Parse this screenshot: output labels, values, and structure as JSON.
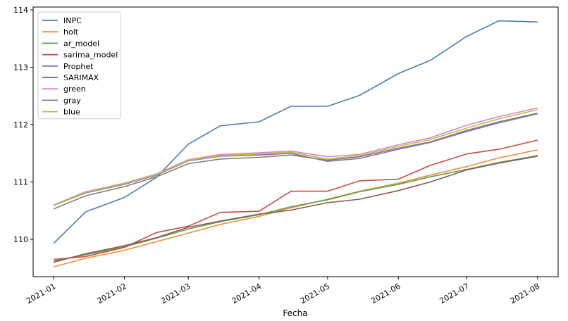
{
  "chart_data": {
    "type": "line",
    "title": "",
    "xlabel": "Fecha",
    "ylabel": "",
    "x": [
      "2021-01-01",
      "2021-01-15",
      "2021-02-01",
      "2021-02-15",
      "2021-03-01",
      "2021-03-15",
      "2021-04-01",
      "2021-04-15",
      "2021-05-01",
      "2021-05-15",
      "2021-06-01",
      "2021-06-15",
      "2021-07-01",
      "2021-07-15",
      "2021-08-01"
    ],
    "xticks": [
      "2021-01",
      "2021-02",
      "2021-03",
      "2021-04",
      "2021-05",
      "2021-06",
      "2021-07",
      "2021-08"
    ],
    "xlim": [
      "2020-12-23",
      "2021-08-10"
    ],
    "yticks": [
      110,
      111,
      112,
      113,
      114
    ],
    "ylim": [
      109.35,
      114.05
    ],
    "grid": false,
    "legend_position": "upper-left",
    "series": [
      {
        "name": "INPC",
        "color": "#4c7eb0",
        "values": [
          109.93,
          110.48,
          110.73,
          111.08,
          111.66,
          111.98,
          112.05,
          112.32,
          112.32,
          112.51,
          112.89,
          113.12,
          113.54,
          113.81,
          113.79
        ]
      },
      {
        "name": "holt",
        "color": "#f0913c",
        "values": [
          109.52,
          109.67,
          109.81,
          109.96,
          110.11,
          110.26,
          110.4,
          110.55,
          110.7,
          110.84,
          110.98,
          111.12,
          111.27,
          111.42,
          111.56
        ]
      },
      {
        "name": "ar_model",
        "color": "#5aa050",
        "values": [
          109.62,
          109.73,
          109.87,
          110.02,
          110.18,
          110.31,
          110.43,
          110.57,
          110.69,
          110.83,
          110.96,
          111.09,
          111.22,
          111.34,
          111.46
        ]
      },
      {
        "name": "sarima_model",
        "color": "#cc4a40",
        "values": [
          109.65,
          109.7,
          109.86,
          110.12,
          110.23,
          110.47,
          110.49,
          110.84,
          110.84,
          111.02,
          111.05,
          111.29,
          111.49,
          111.57,
          111.73
        ]
      },
      {
        "name": "Prophet",
        "color": "#8c6fc0",
        "values": [
          110.59,
          110.81,
          110.96,
          111.12,
          111.37,
          111.45,
          111.47,
          111.5,
          111.36,
          111.41,
          111.57,
          111.69,
          111.88,
          112.03,
          112.19
        ]
      },
      {
        "name": "SARIMAX",
        "color": "#8c5a50",
        "values": [
          109.6,
          109.75,
          109.89,
          110.03,
          110.21,
          110.32,
          110.44,
          110.51,
          110.64,
          110.7,
          110.85,
          111.0,
          111.21,
          111.33,
          111.45
        ]
      },
      {
        "name": "green",
        "color": "#e083c8",
        "values": [
          110.6,
          110.83,
          110.98,
          111.14,
          111.39,
          111.48,
          111.51,
          111.54,
          111.44,
          111.48,
          111.65,
          111.77,
          111.99,
          112.14,
          112.29
        ]
      },
      {
        "name": "gray",
        "color": "#7f7f7f",
        "values": [
          110.53,
          110.76,
          110.92,
          111.09,
          111.32,
          111.4,
          111.43,
          111.47,
          111.38,
          111.44,
          111.59,
          111.7,
          111.9,
          112.05,
          112.2
        ]
      },
      {
        "name": "blue",
        "color": "#bcbd3c",
        "values": [
          110.59,
          110.82,
          110.97,
          111.13,
          111.38,
          111.46,
          111.49,
          111.52,
          111.4,
          111.46,
          111.62,
          111.74,
          111.94,
          112.1,
          112.26
        ]
      }
    ]
  }
}
